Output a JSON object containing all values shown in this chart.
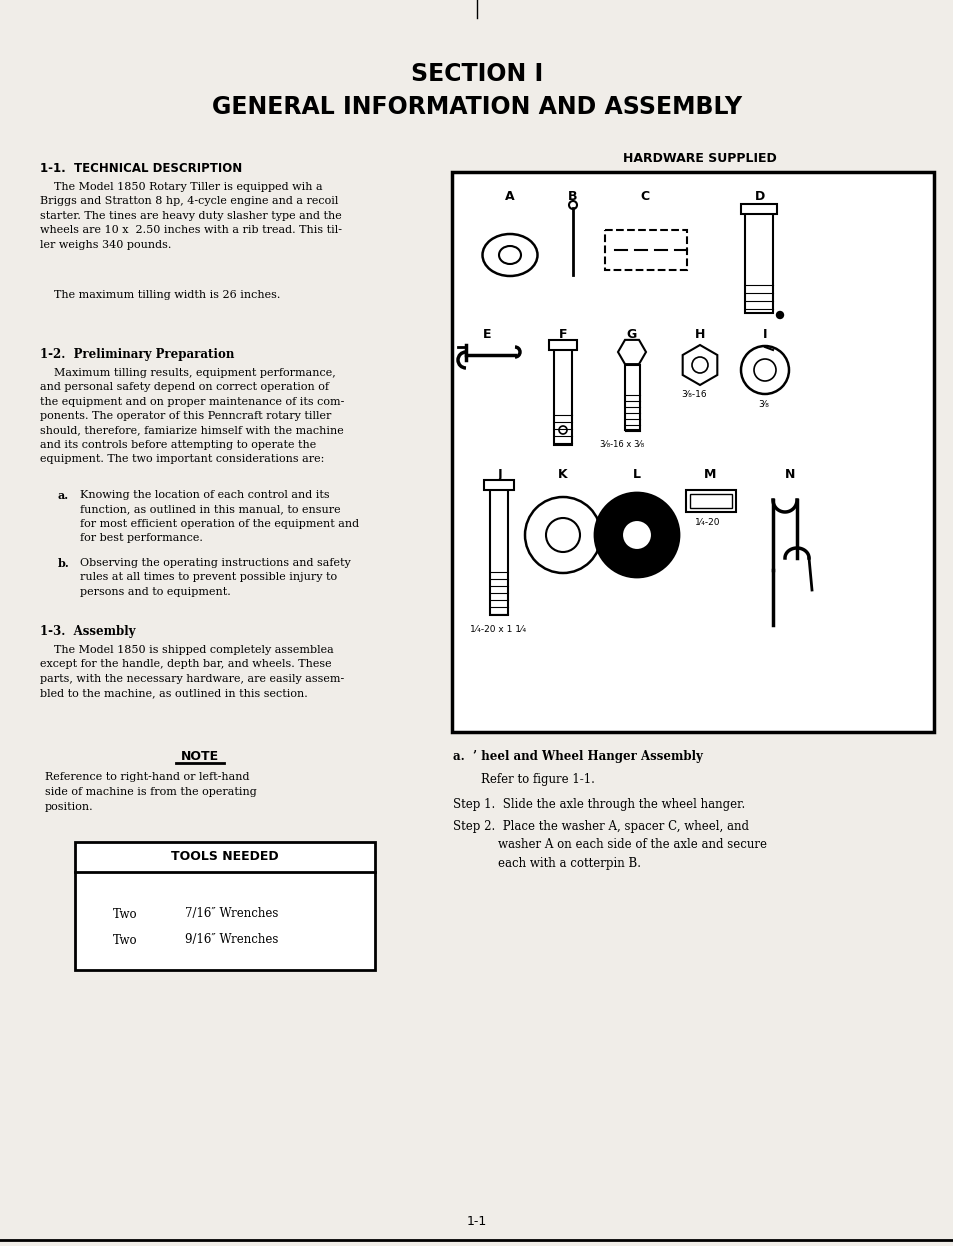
{
  "bg_color": "#f0ede8",
  "title_line1": "SECTION I",
  "title_line2": "GENERAL INFORMATION AND ASSEMBLY",
  "section_11_heading": "1-1.  TECHNICAL DESCRIPTION",
  "section_11_body": "    The Model 1850 Rotary Tiller is equipped wih a\nBriggs and Stratton 8 hp, 4-cycle engine and a recoil\nstarter. The tines are heavy duty slasher type and the\nwheels are 10 x  2.50 inches with a rib tread. This til-\nler weighs 340 pounds.",
  "section_11_body2": "    The maximum tilling width is 26 inches.",
  "section_12_heading": "1-2.  Preliminary Preparation",
  "section_12_body": "    Maximum tilling results, equipment performance,\nand personal safety depend on correct operation of\nthe equipment and on proper maintenance of its com-\nponents. The operator of this Penncraft rotary tiller\nshould, therefore, famiarize himself with the machine\nand its controls before attempting to operate the\nequipment. The two important considerations are:",
  "section_12_a_label": "a.",
  "section_12_a": "Knowing the location of each control and its\nfunction, as outlined in this manual, to ensure\nfor most efficient operation of the equipment and\nfor best performance.",
  "section_12_b_label": "b.",
  "section_12_b": "Observing the operating instructions and safety\nrules at all times to prevent possible injury to\npersons and to equipment.",
  "section_13_heading": "1-3.  Assembly",
  "section_13_body": "    The Model 1850 is shipped completely assemblea\nexcept for the handle, depth bar, and wheels. These\nparts, with the necessary hardware, are easily assem-\nbled to the machine, as outlined in this section.",
  "note_heading": "NOTE",
  "note_body": "Reference to right-hand or left-hand\nside of machine is from the operating\nposition.",
  "tools_heading": "TOOLS NEEDED",
  "hardware_heading": "HARDWARE SUPPLIED",
  "right_section_heading_a": "a.  ’ heel and Wheel Hanger Assembly",
  "right_step1": "Refer to figure 1-1.",
  "right_step2": "Step 1.  Slide the axle through the wheel hanger.",
  "right_step3": "Step 2.  Place the washer A, spacer C, wheel, and\n            washer A on each side of the axle and secure\n            each with a cotterpin B.",
  "page_number": "1-1",
  "hw_labels_row1": [
    "A",
    "B",
    "C",
    "D"
  ],
  "hw_labels_row2": [
    "E",
    "F",
    "G",
    "H",
    "I"
  ],
  "hw_labels_row3": [
    "J",
    "K",
    "L",
    "M",
    "N"
  ]
}
